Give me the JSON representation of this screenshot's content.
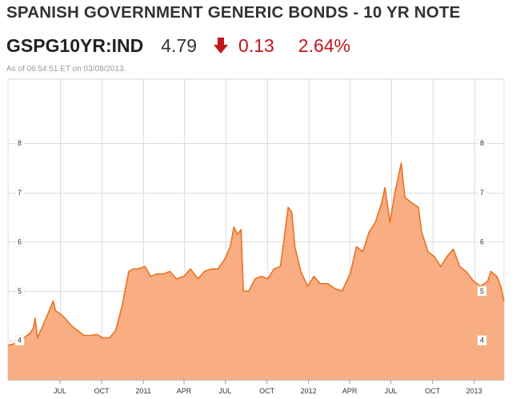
{
  "header": {
    "title": "SPANISH GOVERNMENT GENERIC BONDS - 10 YR NOTE",
    "ticker": "GSPG10YR:IND",
    "price": "4.79",
    "change": "0.13",
    "change_pct": "2.64%",
    "direction_icon": "down-arrow-icon",
    "as_of": "As of 06:54:51 ET on 03/08/2013."
  },
  "colors": {
    "line": "#e8731f",
    "fill": "#f9ad82",
    "negative": "#c0171d",
    "grid": "#dddddd"
  },
  "chart_data": {
    "type": "area",
    "title": "",
    "xlabel": "",
    "ylabel": "",
    "x_tick_labels": [
      "JUL",
      "OCT",
      "2011",
      "APR",
      "JUL",
      "OCT",
      "2012",
      "APR",
      "JUL",
      "OCT",
      "2013"
    ],
    "y_tick_labels": [
      "4",
      "5",
      "6",
      "7",
      "8"
    ],
    "ylim": [
      3.2,
      9.3
    ],
    "xlim": [
      "2010-03-08",
      "2013-03-08"
    ],
    "grid": true,
    "series": [
      {
        "values": [
          [
            "2010-03-08",
            3.9
          ],
          [
            "2010-03-29",
            3.95
          ],
          [
            "2010-04-12",
            4.05
          ],
          [
            "2010-04-26",
            4.15
          ],
          [
            "2010-05-03",
            4.25
          ],
          [
            "2010-05-07",
            4.45
          ],
          [
            "2010-05-12",
            4.05
          ],
          [
            "2010-05-24",
            4.3
          ],
          [
            "2010-06-07",
            4.6
          ],
          [
            "2010-06-16",
            4.8
          ],
          [
            "2010-06-21",
            4.6
          ],
          [
            "2010-06-30",
            4.55
          ],
          [
            "2010-07-12",
            4.45
          ],
          [
            "2010-07-26",
            4.3
          ],
          [
            "2010-08-09",
            4.2
          ],
          [
            "2010-08-23",
            4.1
          ],
          [
            "2010-09-06",
            4.1
          ],
          [
            "2010-09-20",
            4.12
          ],
          [
            "2010-10-04",
            4.05
          ],
          [
            "2010-10-18",
            4.05
          ],
          [
            "2010-11-01",
            4.2
          ],
          [
            "2010-11-15",
            4.7
          ],
          [
            "2010-11-30",
            5.4
          ],
          [
            "2010-12-10",
            5.45
          ],
          [
            "2010-12-20",
            5.45
          ],
          [
            "2011-01-05",
            5.5
          ],
          [
            "2011-01-17",
            5.3
          ],
          [
            "2011-02-01",
            5.35
          ],
          [
            "2011-02-15",
            5.35
          ],
          [
            "2011-03-01",
            5.4
          ],
          [
            "2011-03-15",
            5.25
          ],
          [
            "2011-04-01",
            5.3
          ],
          [
            "2011-04-15",
            5.45
          ],
          [
            "2011-05-02",
            5.25
          ],
          [
            "2011-05-16",
            5.4
          ],
          [
            "2011-06-01",
            5.45
          ],
          [
            "2011-06-15",
            5.45
          ],
          [
            "2011-06-30",
            5.65
          ],
          [
            "2011-07-12",
            5.9
          ],
          [
            "2011-07-20",
            6.3
          ],
          [
            "2011-07-28",
            6.15
          ],
          [
            "2011-08-05",
            6.25
          ],
          [
            "2011-08-10",
            5.0
          ],
          [
            "2011-08-22",
            5.0
          ],
          [
            "2011-09-05",
            5.25
          ],
          [
            "2011-09-19",
            5.3
          ],
          [
            "2011-10-03",
            5.25
          ],
          [
            "2011-10-17",
            5.45
          ],
          [
            "2011-10-31",
            5.5
          ],
          [
            "2011-11-10",
            6.2
          ],
          [
            "2011-11-17",
            6.7
          ],
          [
            "2011-11-25",
            6.6
          ],
          [
            "2011-12-02",
            5.9
          ],
          [
            "2011-12-15",
            5.4
          ],
          [
            "2011-12-30",
            5.1
          ],
          [
            "2012-01-13",
            5.3
          ],
          [
            "2012-01-27",
            5.15
          ],
          [
            "2012-02-13",
            5.15
          ],
          [
            "2012-02-29",
            5.05
          ],
          [
            "2012-03-15",
            5.0
          ],
          [
            "2012-04-02",
            5.35
          ],
          [
            "2012-04-16",
            5.9
          ],
          [
            "2012-04-30",
            5.8
          ],
          [
            "2012-05-14",
            6.2
          ],
          [
            "2012-05-28",
            6.4
          ],
          [
            "2012-06-11",
            6.8
          ],
          [
            "2012-06-18",
            7.1
          ],
          [
            "2012-06-29",
            6.4
          ],
          [
            "2012-07-10",
            7.0
          ],
          [
            "2012-07-24",
            7.6
          ],
          [
            "2012-08-01",
            6.9
          ],
          [
            "2012-08-15",
            6.8
          ],
          [
            "2012-08-31",
            6.7
          ],
          [
            "2012-09-07",
            6.2
          ],
          [
            "2012-09-21",
            5.8
          ],
          [
            "2012-10-05",
            5.7
          ],
          [
            "2012-10-19",
            5.5
          ],
          [
            "2012-11-02",
            5.7
          ],
          [
            "2012-11-16",
            5.85
          ],
          [
            "2012-11-30",
            5.5
          ],
          [
            "2012-12-14",
            5.4
          ],
          [
            "2012-12-31",
            5.2
          ],
          [
            "2013-01-15",
            5.1
          ],
          [
            "2013-01-31",
            5.2
          ],
          [
            "2013-02-07",
            5.4
          ],
          [
            "2013-02-20",
            5.3
          ],
          [
            "2013-03-01",
            5.1
          ],
          [
            "2013-03-08",
            4.79
          ]
        ]
      }
    ]
  }
}
